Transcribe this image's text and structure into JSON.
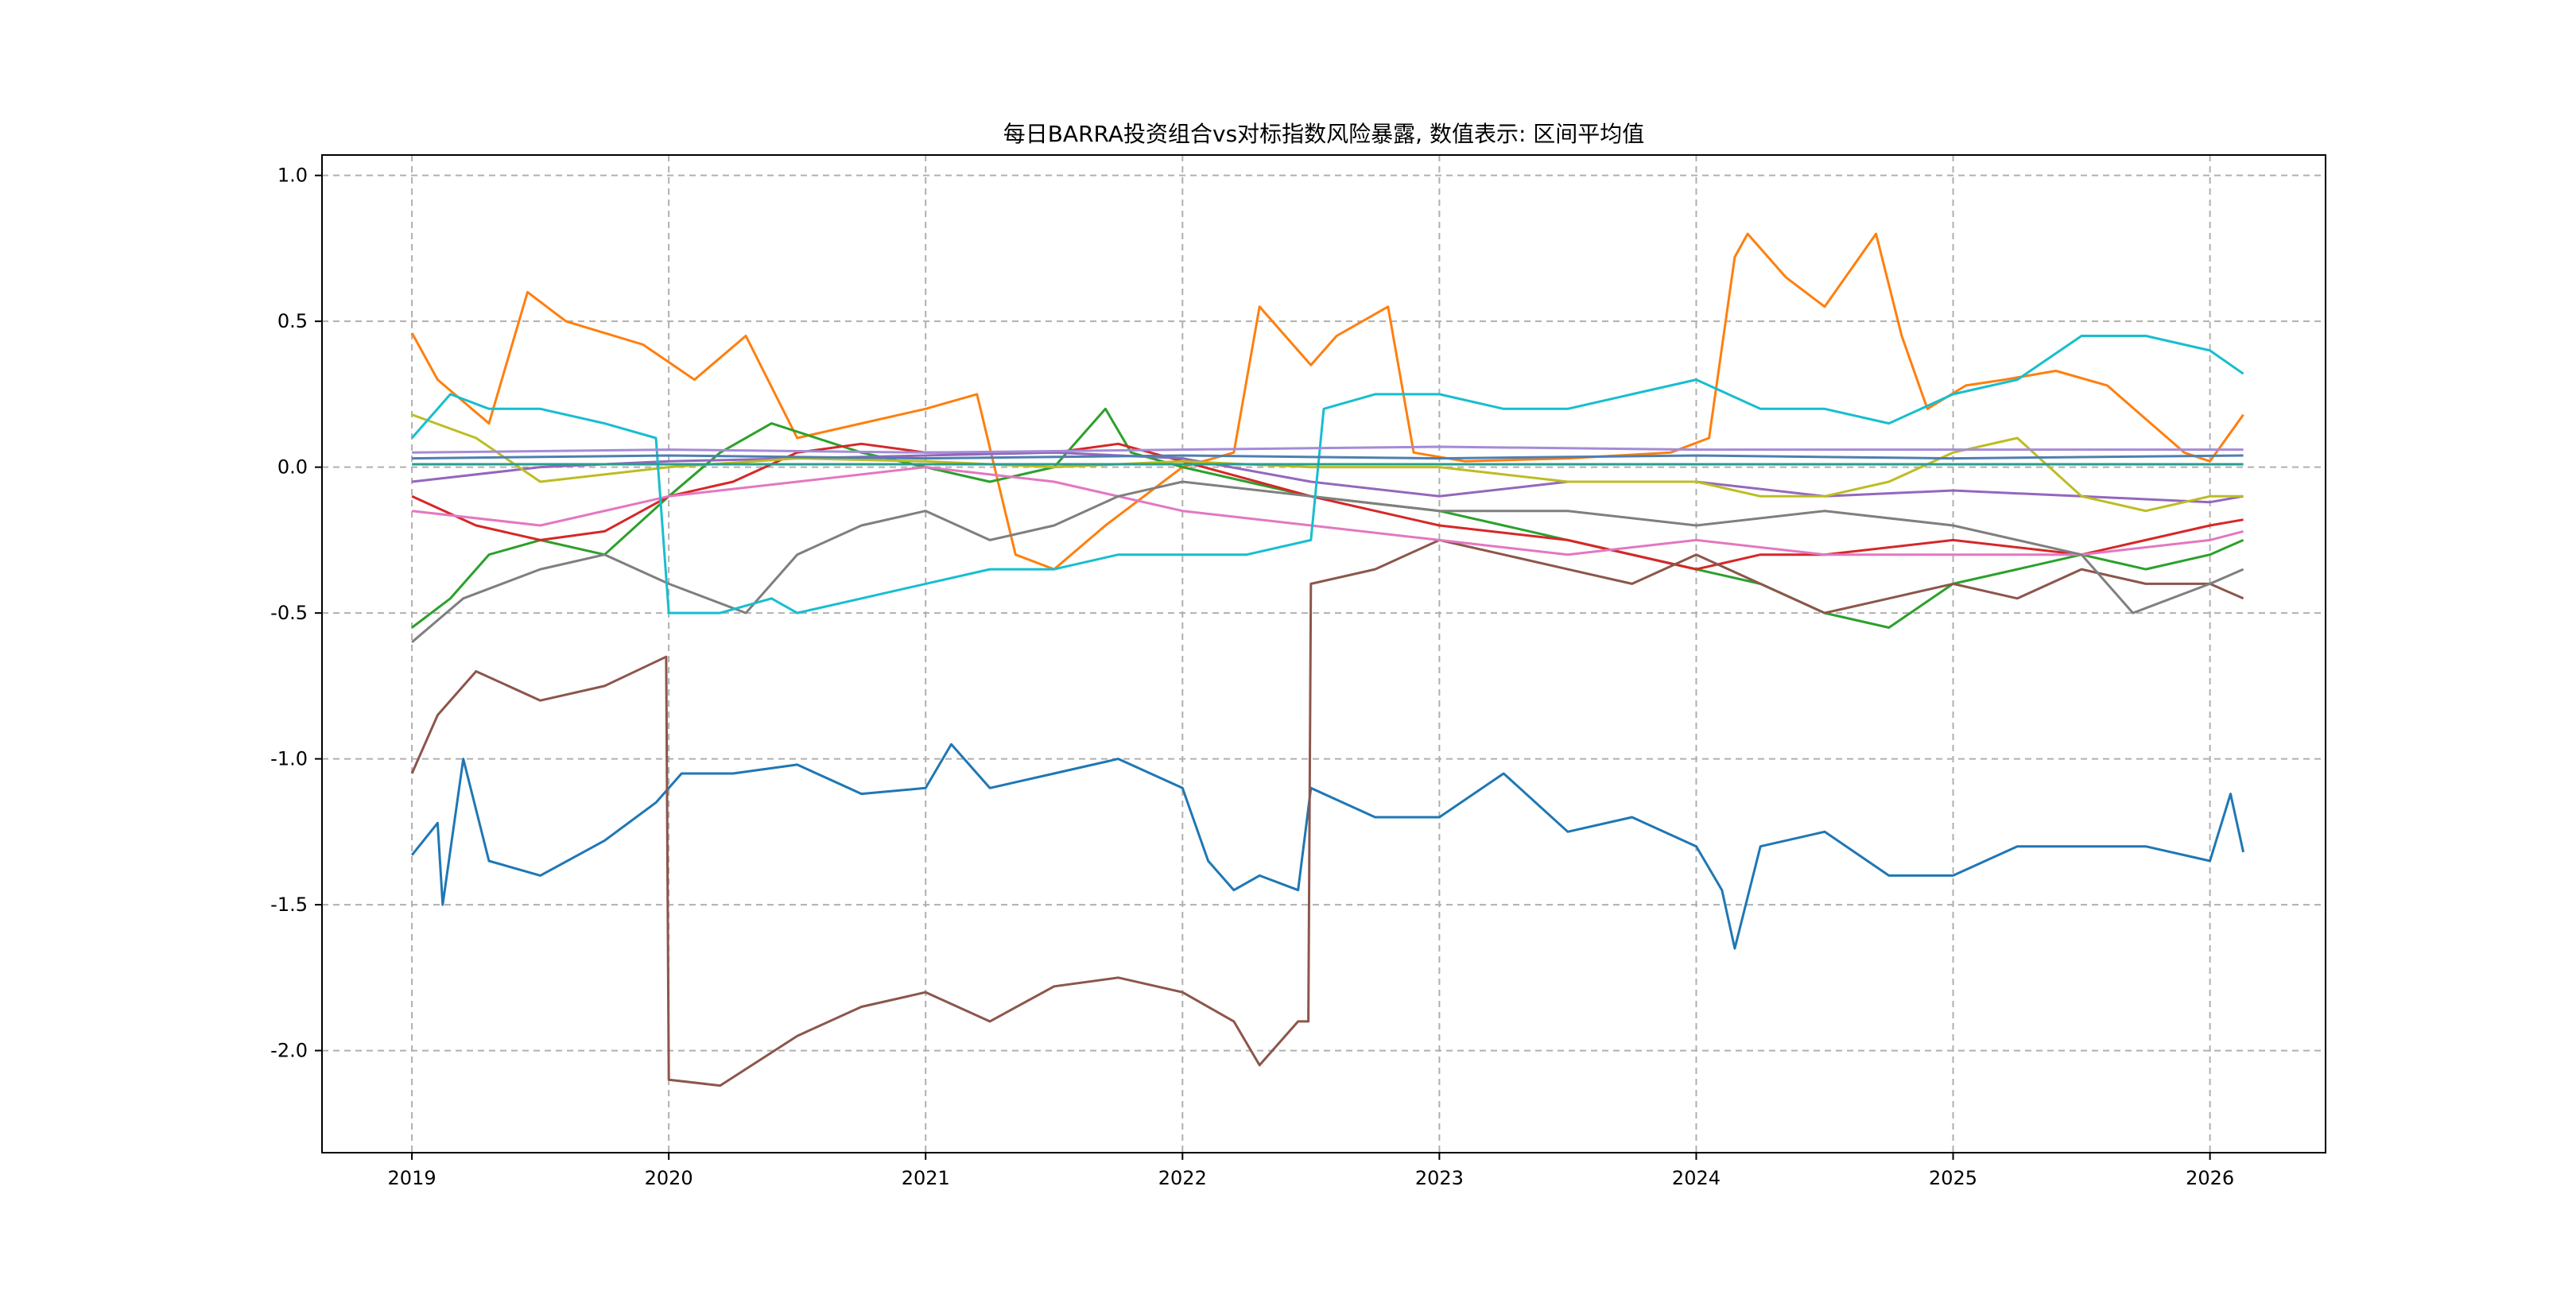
{
  "chart_data": {
    "type": "line",
    "title": "每日BARRA投资组合vs对标指数风险暴露, 数值表示: 区间平均值",
    "xlabel": "",
    "ylabel": "",
    "xlim": [
      2018.65,
      2026.45
    ],
    "ylim": [
      -2.35,
      1.07
    ],
    "grid": true,
    "legend": "none",
    "x_ticks": [
      {
        "value": 2019,
        "label": "2019"
      },
      {
        "value": 2020,
        "label": "2020"
      },
      {
        "value": 2021,
        "label": "2021"
      },
      {
        "value": 2022,
        "label": "2022"
      },
      {
        "value": 2023,
        "label": "2023"
      },
      {
        "value": 2024,
        "label": "2024"
      },
      {
        "value": 2025,
        "label": "2025"
      },
      {
        "value": 2026,
        "label": "2026"
      }
    ],
    "y_ticks": [
      {
        "value": 1.0,
        "label": "1.0"
      },
      {
        "value": 0.5,
        "label": "0.5"
      },
      {
        "value": 0.0,
        "label": "0.0"
      },
      {
        "value": -0.5,
        "label": "-0.5"
      },
      {
        "value": -1.0,
        "label": "-1.0"
      },
      {
        "value": -1.5,
        "label": "-1.5"
      },
      {
        "value": -2.0,
        "label": "-2.0"
      }
    ],
    "series": [
      {
        "name": "series-blue",
        "color": "#1f77b4",
        "x": [
          2019.0,
          2019.1,
          2019.12,
          2019.2,
          2019.3,
          2019.5,
          2019.75,
          2019.95,
          2020.05,
          2020.25,
          2020.5,
          2020.75,
          2021.0,
          2021.1,
          2021.25,
          2021.5,
          2021.75,
          2022.0,
          2022.1,
          2022.2,
          2022.3,
          2022.45,
          2022.5,
          2022.75,
          2023.0,
          2023.25,
          2023.5,
          2023.75,
          2024.0,
          2024.1,
          2024.15,
          2024.25,
          2024.5,
          2024.75,
          2025.0,
          2025.25,
          2025.5,
          2025.75,
          2026.0,
          2026.08,
          2026.13
        ],
        "y": [
          -1.33,
          -1.22,
          -1.5,
          -1.0,
          -1.35,
          -1.4,
          -1.28,
          -1.15,
          -1.05,
          -1.05,
          -1.02,
          -1.12,
          -1.1,
          -0.95,
          -1.1,
          -1.05,
          -1.0,
          -1.1,
          -1.35,
          -1.45,
          -1.4,
          -1.45,
          -1.1,
          -1.2,
          -1.2,
          -1.05,
          -1.25,
          -1.2,
          -1.3,
          -1.45,
          -1.65,
          -1.3,
          -1.25,
          -1.4,
          -1.4,
          -1.3,
          -1.3,
          -1.3,
          -1.35,
          -1.12,
          -1.32
        ]
      },
      {
        "name": "series-orange",
        "color": "#ff7f0e",
        "x": [
          2019.0,
          2019.1,
          2019.3,
          2019.45,
          2019.6,
          2019.9,
          2020.1,
          2020.3,
          2020.5,
          2020.75,
          2021.0,
          2021.2,
          2021.35,
          2021.5,
          2021.7,
          2022.0,
          2022.2,
          2022.3,
          2022.5,
          2022.6,
          2022.8,
          2022.9,
          2023.1,
          2023.5,
          2023.9,
          2024.05,
          2024.15,
          2024.2,
          2024.35,
          2024.5,
          2024.7,
          2024.8,
          2024.9,
          2025.05,
          2025.2,
          2025.4,
          2025.6,
          2025.9,
          2026.0,
          2026.13
        ],
        "y": [
          0.46,
          0.3,
          0.15,
          0.6,
          0.5,
          0.42,
          0.3,
          0.45,
          0.1,
          0.15,
          0.2,
          0.25,
          -0.3,
          -0.35,
          -0.2,
          0.0,
          0.05,
          0.55,
          0.35,
          0.45,
          0.55,
          0.05,
          0.02,
          0.03,
          0.05,
          0.1,
          0.72,
          0.8,
          0.65,
          0.55,
          0.8,
          0.45,
          0.2,
          0.28,
          0.3,
          0.33,
          0.28,
          0.05,
          0.02,
          0.18
        ]
      },
      {
        "name": "series-green",
        "color": "#2ca02c",
        "x": [
          2019.0,
          2019.15,
          2019.3,
          2019.5,
          2019.75,
          2020.0,
          2020.2,
          2020.4,
          2020.75,
          2021.0,
          2021.25,
          2021.5,
          2021.7,
          2021.8,
          2022.0,
          2022.25,
          2022.5,
          2023.0,
          2023.25,
          2023.5,
          2024.0,
          2024.25,
          2024.5,
          2024.75,
          2025.0,
          2025.25,
          2025.5,
          2025.75,
          2026.0,
          2026.13
        ],
        "y": [
          -0.55,
          -0.45,
          -0.3,
          -0.25,
          -0.3,
          -0.1,
          0.05,
          0.15,
          0.05,
          0.0,
          -0.05,
          0.0,
          0.2,
          0.05,
          0.0,
          -0.05,
          -0.1,
          -0.15,
          -0.2,
          -0.25,
          -0.35,
          -0.4,
          -0.5,
          -0.55,
          -0.4,
          -0.35,
          -0.3,
          -0.35,
          -0.3,
          -0.25
        ]
      },
      {
        "name": "series-red",
        "color": "#d62728",
        "x": [
          2019.0,
          2019.25,
          2019.5,
          2019.75,
          2020.0,
          2020.25,
          2020.5,
          2020.75,
          2021.0,
          2021.5,
          2021.75,
          2022.0,
          2022.5,
          2023.0,
          2023.5,
          2024.0,
          2024.25,
          2024.5,
          2025.0,
          2025.5,
          2026.0,
          2026.13
        ],
        "y": [
          -0.1,
          -0.2,
          -0.25,
          -0.22,
          -0.1,
          -0.05,
          0.05,
          0.08,
          0.05,
          0.05,
          0.08,
          0.02,
          -0.1,
          -0.2,
          -0.25,
          -0.35,
          -0.3,
          -0.3,
          -0.25,
          -0.3,
          -0.2,
          -0.18
        ]
      },
      {
        "name": "series-purple",
        "color": "#9467bd",
        "x": [
          2019.0,
          2019.5,
          2020.0,
          2020.5,
          2021.0,
          2021.5,
          2022.0,
          2022.5,
          2023.0,
          2023.5,
          2024.0,
          2024.5,
          2025.0,
          2025.5,
          2026.0,
          2026.13
        ],
        "y": [
          -0.05,
          0.0,
          0.02,
          0.03,
          0.04,
          0.05,
          0.03,
          -0.05,
          -0.1,
          -0.05,
          -0.05,
          -0.1,
          -0.08,
          -0.1,
          -0.12,
          -0.1
        ]
      },
      {
        "name": "series-brown",
        "color": "#8c564b",
        "x": [
          2019.0,
          2019.1,
          2019.25,
          2019.5,
          2019.75,
          2019.99,
          2020.0,
          2020.2,
          2020.5,
          2020.75,
          2021.0,
          2021.25,
          2021.5,
          2021.75,
          2022.0,
          2022.2,
          2022.3,
          2022.45,
          2022.49,
          2022.5,
          2022.75,
          2023.0,
          2023.25,
          2023.5,
          2023.75,
          2024.0,
          2024.25,
          2024.5,
          2024.75,
          2025.0,
          2025.25,
          2025.5,
          2025.75,
          2026.0,
          2026.13
        ],
        "y": [
          -1.05,
          -0.85,
          -0.7,
          -0.8,
          -0.75,
          -0.65,
          -2.1,
          -2.12,
          -1.95,
          -1.85,
          -1.8,
          -1.9,
          -1.78,
          -1.75,
          -1.8,
          -1.9,
          -2.05,
          -1.9,
          -1.9,
          -0.4,
          -0.35,
          -0.25,
          -0.3,
          -0.35,
          -0.4,
          -0.3,
          -0.4,
          -0.5,
          -0.45,
          -0.4,
          -0.45,
          -0.35,
          -0.4,
          -0.4,
          -0.45
        ]
      },
      {
        "name": "series-pink",
        "color": "#e377c2",
        "x": [
          2019.0,
          2019.5,
          2020.0,
          2020.5,
          2021.0,
          2021.5,
          2022.0,
          2022.5,
          2023.0,
          2023.5,
          2024.0,
          2024.5,
          2025.0,
          2025.5,
          2026.0,
          2026.13
        ],
        "y": [
          -0.15,
          -0.2,
          -0.1,
          -0.05,
          0.0,
          -0.05,
          -0.15,
          -0.2,
          -0.25,
          -0.3,
          -0.25,
          -0.3,
          -0.3,
          -0.3,
          -0.25,
          -0.22
        ]
      },
      {
        "name": "series-gray",
        "color": "#7f7f7f",
        "x": [
          2019.0,
          2019.2,
          2019.5,
          2019.75,
          2020.0,
          2020.3,
          2020.5,
          2020.75,
          2021.0,
          2021.25,
          2021.5,
          2021.75,
          2022.0,
          2022.5,
          2023.0,
          2023.5,
          2024.0,
          2024.5,
          2025.0,
          2025.5,
          2025.7,
          2026.0,
          2026.13
        ],
        "y": [
          -0.6,
          -0.45,
          -0.35,
          -0.3,
          -0.4,
          -0.5,
          -0.3,
          -0.2,
          -0.15,
          -0.25,
          -0.2,
          -0.1,
          -0.05,
          -0.1,
          -0.15,
          -0.15,
          -0.2,
          -0.15,
          -0.2,
          -0.3,
          -0.5,
          -0.4,
          -0.35
        ]
      },
      {
        "name": "series-olive",
        "color": "#bcbd22",
        "x": [
          2019.0,
          2019.25,
          2019.5,
          2020.0,
          2020.5,
          2021.0,
          2021.5,
          2022.0,
          2022.5,
          2023.0,
          2023.5,
          2024.0,
          2024.25,
          2024.5,
          2024.75,
          2025.0,
          2025.25,
          2025.5,
          2025.75,
          2026.0,
          2026.13
        ],
        "y": [
          0.18,
          0.1,
          -0.05,
          0.0,
          0.03,
          0.02,
          0.0,
          0.02,
          0.0,
          0.0,
          -0.05,
          -0.05,
          -0.1,
          -0.1,
          -0.05,
          0.05,
          0.1,
          -0.1,
          -0.15,
          -0.1,
          -0.1
        ]
      },
      {
        "name": "series-cyan",
        "color": "#17becf",
        "x": [
          2019.0,
          2019.15,
          2019.3,
          2019.5,
          2019.75,
          2019.95,
          2020.0,
          2020.2,
          2020.4,
          2020.5,
          2020.75,
          2021.0,
          2021.25,
          2021.5,
          2021.75,
          2022.0,
          2022.25,
          2022.5,
          2022.55,
          2022.75,
          2023.0,
          2023.25,
          2023.5,
          2023.75,
          2024.0,
          2024.25,
          2024.5,
          2024.75,
          2025.0,
          2025.25,
          2025.5,
          2025.75,
          2026.0,
          2026.13
        ],
        "y": [
          0.1,
          0.25,
          0.2,
          0.2,
          0.15,
          0.1,
          -0.5,
          -0.5,
          -0.45,
          -0.5,
          -0.45,
          -0.4,
          -0.35,
          -0.35,
          -0.3,
          -0.3,
          -0.3,
          -0.25,
          0.2,
          0.25,
          0.25,
          0.2,
          0.2,
          0.25,
          0.3,
          0.2,
          0.2,
          0.15,
          0.25,
          0.3,
          0.45,
          0.45,
          0.4,
          0.32
        ]
      },
      {
        "name": "series-steel",
        "color": "#4f7fb0",
        "x": [
          2019.0,
          2020.0,
          2021.0,
          2022.0,
          2023.0,
          2024.0,
          2025.0,
          2026.13
        ],
        "y": [
          0.03,
          0.04,
          0.03,
          0.04,
          0.03,
          0.04,
          0.03,
          0.04
        ]
      },
      {
        "name": "series-teal",
        "color": "#2a9d8f",
        "x": [
          2019.0,
          2020.0,
          2021.0,
          2022.0,
          2023.0,
          2024.0,
          2025.0,
          2026.13
        ],
        "y": [
          0.01,
          0.01,
          0.01,
          0.01,
          0.01,
          0.01,
          0.01,
          0.01
        ]
      },
      {
        "name": "series-lilac",
        "color": "#a48bd6",
        "x": [
          2019.0,
          2020.0,
          2021.0,
          2022.0,
          2023.0,
          2024.0,
          2025.0,
          2026.13
        ],
        "y": [
          0.05,
          0.06,
          0.05,
          0.06,
          0.07,
          0.06,
          0.06,
          0.06
        ]
      }
    ]
  }
}
